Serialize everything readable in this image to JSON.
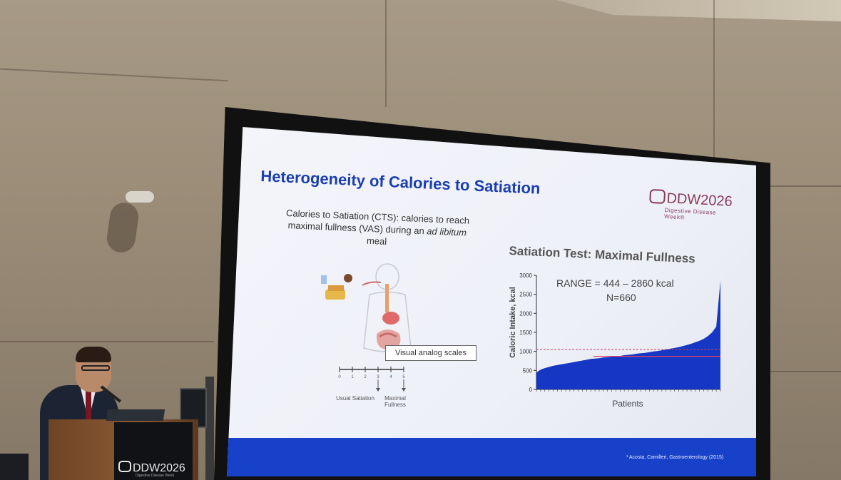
{
  "slide": {
    "title": "Heterogeneity of Calories to Satiation",
    "brand": {
      "logo_text": "DDW2026",
      "logo_subtitle": "Digestive Disease Week®",
      "color": "#8a3b57"
    },
    "definition": {
      "text_before": "Calories to Satiation (CTS): calories to reach maximal fullness (VAS) during an",
      "italic": "ad libitum",
      "text_after": "meal"
    },
    "illustration": {
      "vas_label": "Visual analog scales",
      "vas_ticks": [
        "0",
        "1",
        "2",
        "3",
        "4",
        "5"
      ],
      "usual_satiation": "Usual Satiation",
      "maximal_fullness": "Maximal Fullness"
    },
    "chart_title": "Satiation Test: Maximal Fullness",
    "citation": "¹ Acosta, Camilleri, Gastroenterology (2015)",
    "accent_color": "#1b3fb0",
    "footer_color": "#1741c8"
  },
  "chart_data": {
    "type": "area",
    "title": "Satiation Test: Maximal Fullness",
    "xlabel": "Patients",
    "ylabel": "Caloric Intake, kcal",
    "ylim": [
      0,
      3000
    ],
    "yticks": [
      "0",
      "500",
      "1000",
      "1500",
      "2000",
      "2500",
      "3000"
    ],
    "annotation_range": "RANGE = 444 – 2860 kcal",
    "annotation_n": "N=660",
    "dashed_reference_line": 1050,
    "solid_reference_line": 870,
    "series": [
      {
        "color": "#1637c4",
        "values": [
          444,
          520,
          560,
          590,
          620,
          640,
          660,
          680,
          700,
          720,
          740,
          760,
          780,
          800,
          810,
          820,
          840,
          850,
          860,
          870,
          880,
          900,
          910,
          920,
          940,
          950,
          960,
          980,
          1000,
          1010,
          1030,
          1050,
          1070,
          1090,
          1110,
          1140,
          1170,
          1200,
          1240,
          1280,
          1330,
          1400,
          1500,
          1650,
          2860
        ]
      }
    ]
  },
  "podium": {
    "logo_text": "DDW2026",
    "logo_subtitle": "Digestive Disease Week"
  }
}
